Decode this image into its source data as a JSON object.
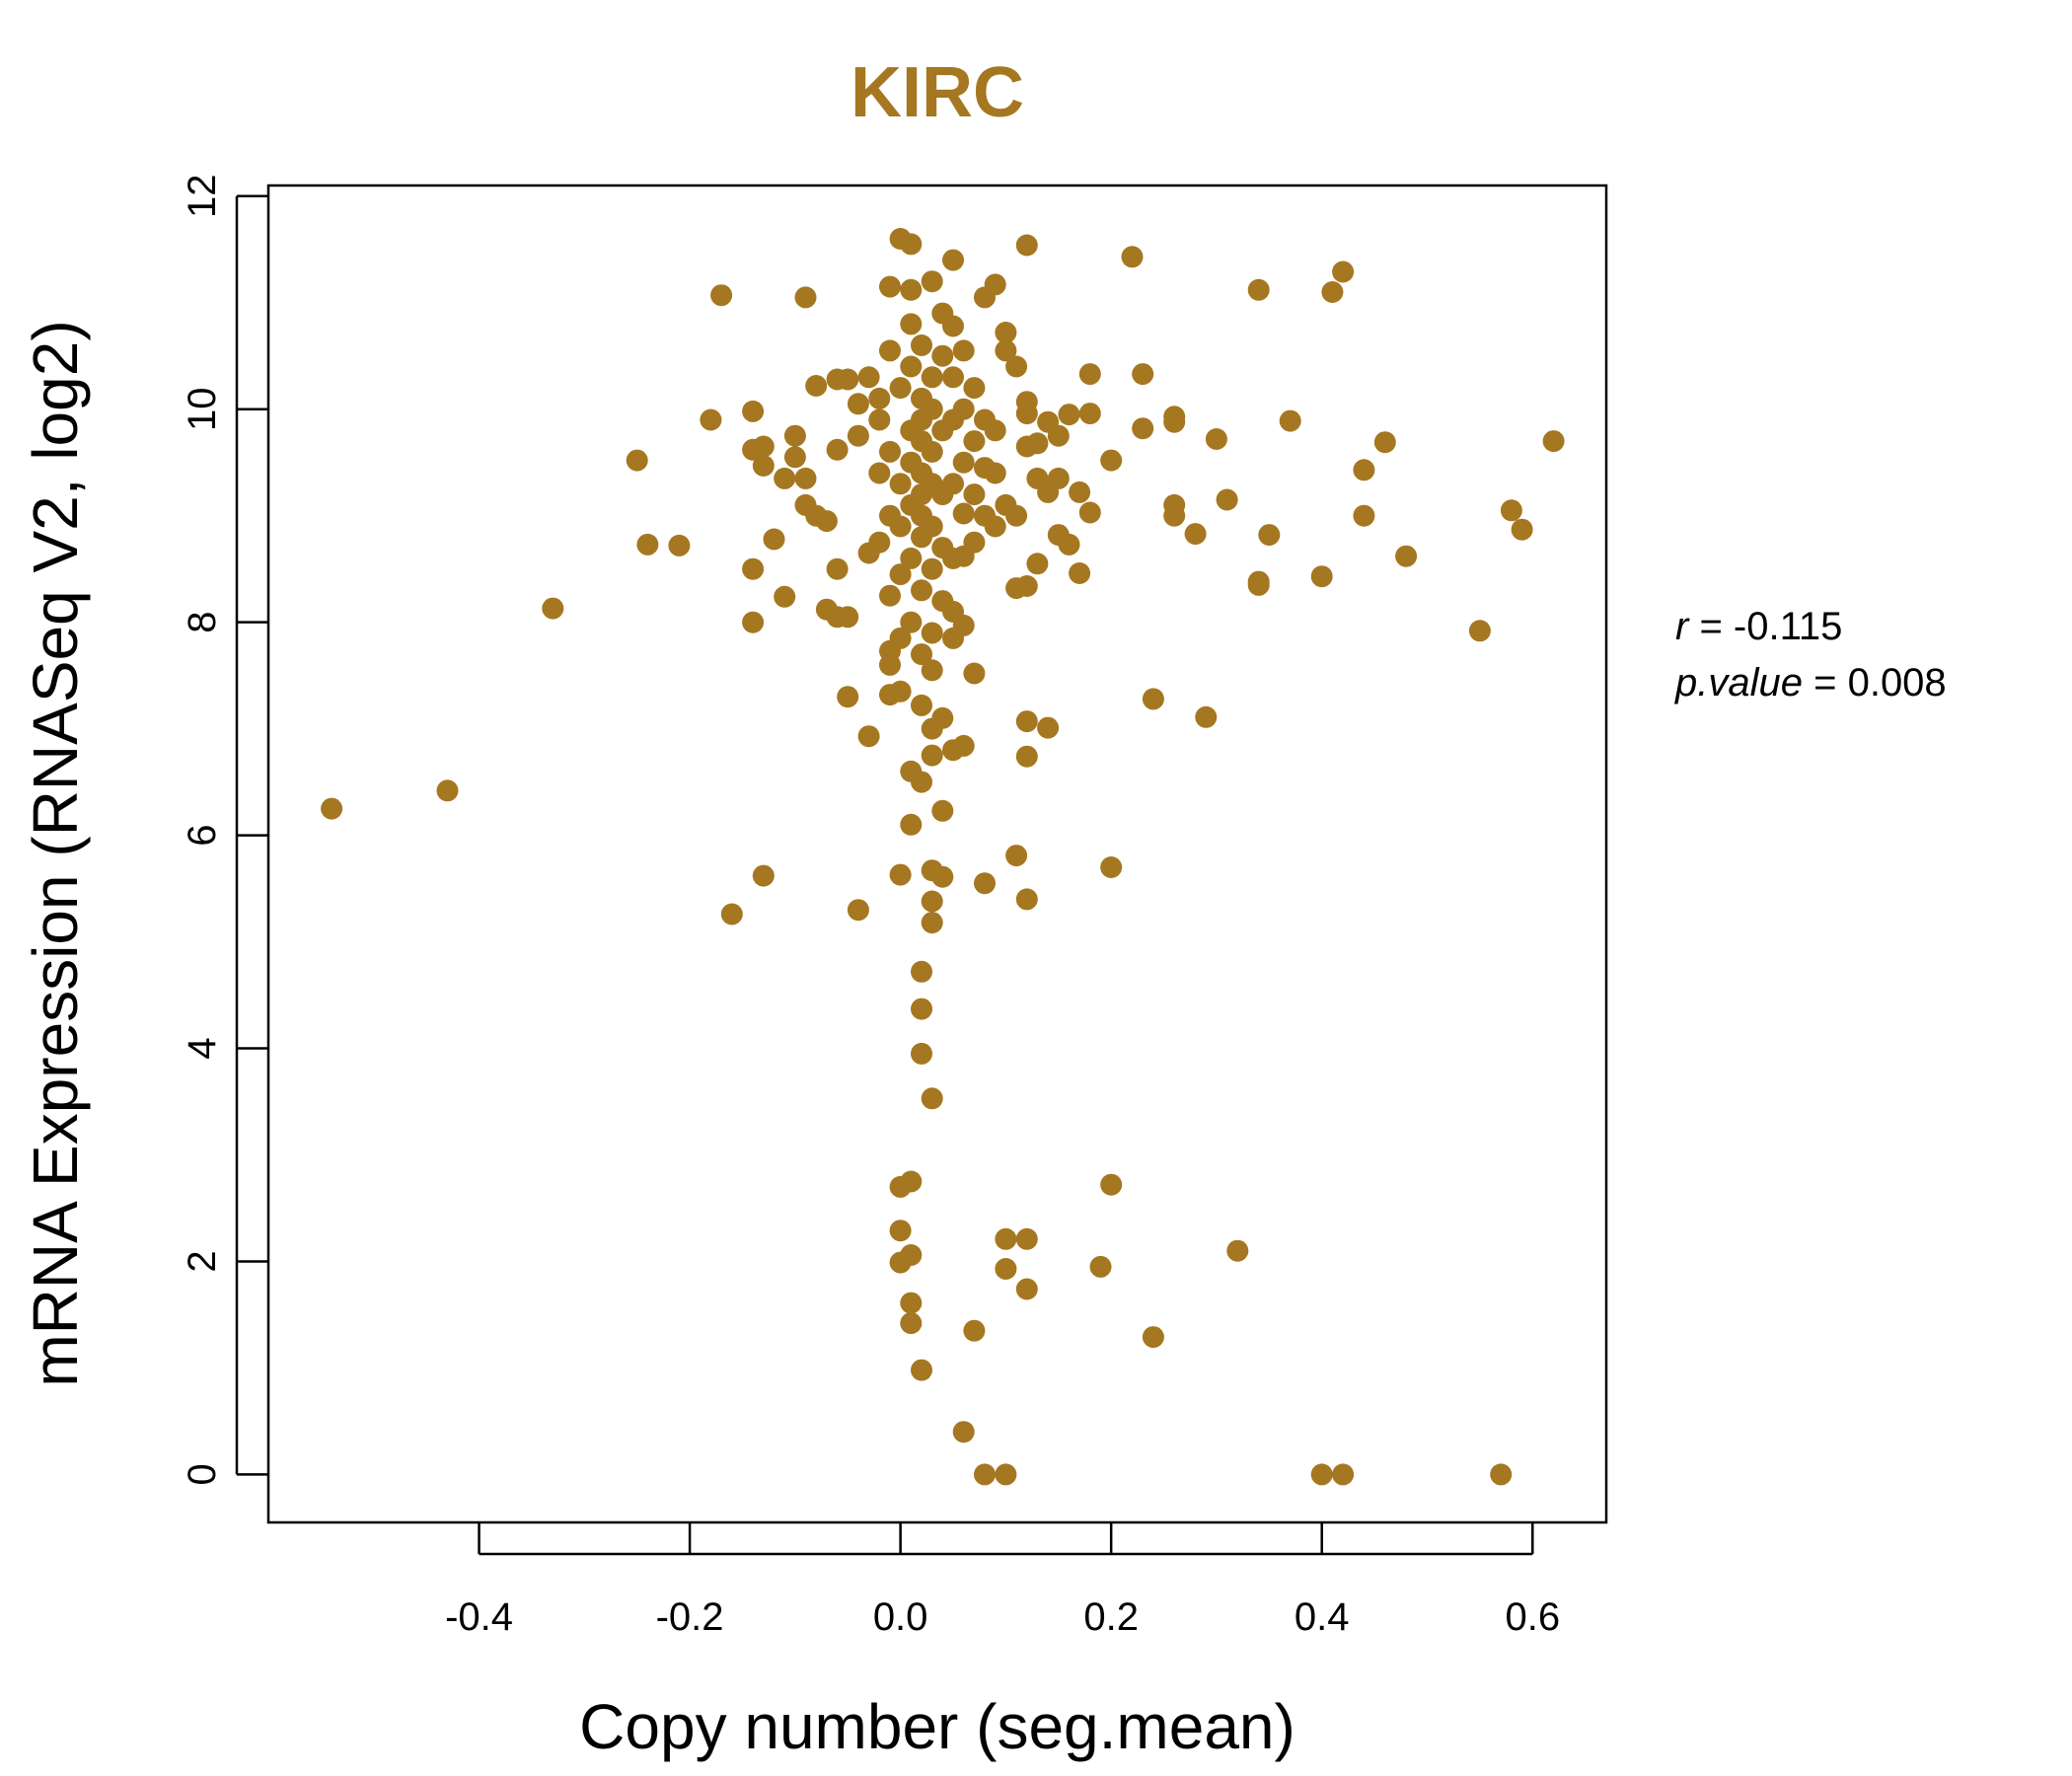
{
  "chart_data": {
    "type": "scatter",
    "title": "KIRC",
    "xlabel": "Copy number (seg.mean)",
    "ylabel": "mRNA Expression (RNASeq V2, log2)",
    "xlim": [
      -0.6,
      0.67
    ],
    "ylim": [
      -0.45,
      12.1
    ],
    "x_ticks": [
      -0.4,
      -0.2,
      0.0,
      0.2,
      0.4,
      0.6
    ],
    "x_tick_labels": [
      "-0.4",
      "-0.2",
      "0.0",
      "0.2",
      "0.4",
      "0.6"
    ],
    "y_ticks": [
      0,
      2,
      4,
      6,
      8,
      10,
      12
    ],
    "y_tick_labels": [
      "0",
      "2",
      "4",
      "6",
      "8",
      "10",
      "12"
    ],
    "grid": false,
    "color": "#A57721",
    "points": [
      [
        -0.54,
        6.25
      ],
      [
        -0.43,
        6.42
      ],
      [
        -0.33,
        8.13
      ],
      [
        -0.25,
        9.52
      ],
      [
        -0.24,
        8.73
      ],
      [
        -0.21,
        8.72
      ],
      [
        -0.18,
        9.9
      ],
      [
        -0.17,
        11.07
      ],
      [
        -0.16,
        5.26
      ],
      [
        -0.14,
        9.62
      ],
      [
        -0.14,
        9.98
      ],
      [
        -0.14,
        8.5
      ],
      [
        -0.14,
        8.0
      ],
      [
        -0.13,
        9.47
      ],
      [
        -0.13,
        9.65
      ],
      [
        -0.13,
        5.62
      ],
      [
        -0.12,
        8.78
      ],
      [
        -0.11,
        9.35
      ],
      [
        -0.11,
        8.24
      ],
      [
        -0.1,
        9.55
      ],
      [
        -0.1,
        9.75
      ],
      [
        -0.09,
        9.35
      ],
      [
        -0.09,
        11.05
      ],
      [
        -0.09,
        9.1
      ],
      [
        -0.08,
        9.0
      ],
      [
        -0.08,
        10.22
      ],
      [
        -0.07,
        8.95
      ],
      [
        -0.07,
        8.12
      ],
      [
        -0.06,
        8.05
      ],
      [
        -0.06,
        10.28
      ],
      [
        -0.06,
        9.62
      ],
      [
        -0.06,
        8.5
      ],
      [
        -0.05,
        8.05
      ],
      [
        -0.05,
        7.3
      ],
      [
        -0.05,
        10.28
      ],
      [
        -0.04,
        9.75
      ],
      [
        -0.04,
        10.05
      ],
      [
        -0.04,
        5.3
      ],
      [
        -0.03,
        8.65
      ],
      [
        -0.03,
        6.93
      ],
      [
        -0.03,
        10.3
      ],
      [
        -0.02,
        9.4
      ],
      [
        -0.02,
        8.75
      ],
      [
        -0.02,
        9.9
      ],
      [
        -0.02,
        10.1
      ],
      [
        -0.01,
        7.32
      ],
      [
        -0.01,
        7.6
      ],
      [
        -0.01,
        7.73
      ],
      [
        -0.01,
        8.25
      ],
      [
        -0.01,
        9.0
      ],
      [
        -0.01,
        9.6
      ],
      [
        -0.01,
        10.55
      ],
      [
        -0.01,
        11.15
      ],
      [
        0.0,
        8.45
      ],
      [
        0.0,
        8.9
      ],
      [
        0.0,
        9.3
      ],
      [
        0.0,
        10.2
      ],
      [
        0.0,
        7.85
      ],
      [
        0.0,
        5.63
      ],
      [
        0.0,
        11.6
      ],
      [
        0.0,
        1.99
      ],
      [
        0.0,
        2.29
      ],
      [
        0.0,
        2.7
      ],
      [
        0.0,
        7.35
      ],
      [
        0.01,
        6.1
      ],
      [
        0.01,
        6.6
      ],
      [
        0.01,
        2.75
      ],
      [
        0.01,
        1.42
      ],
      [
        0.01,
        1.61
      ],
      [
        0.01,
        2.06
      ],
      [
        0.01,
        8.0
      ],
      [
        0.01,
        8.6
      ],
      [
        0.01,
        9.1
      ],
      [
        0.01,
        9.5
      ],
      [
        0.01,
        9.8
      ],
      [
        0.01,
        10.4
      ],
      [
        0.01,
        10.8
      ],
      [
        0.01,
        11.12
      ],
      [
        0.01,
        11.55
      ],
      [
        0.02,
        8.3
      ],
      [
        0.02,
        8.8
      ],
      [
        0.02,
        9.2
      ],
      [
        0.02,
        9.7
      ],
      [
        0.02,
        10.1
      ],
      [
        0.02,
        10.6
      ],
      [
        0.02,
        7.7
      ],
      [
        0.02,
        7.22
      ],
      [
        0.02,
        6.5
      ],
      [
        0.02,
        4.72
      ],
      [
        0.02,
        4.37
      ],
      [
        0.02,
        3.95
      ],
      [
        0.02,
        0.98
      ],
      [
        0.02,
        9.0
      ],
      [
        0.02,
        9.4
      ],
      [
        0.02,
        9.9
      ],
      [
        0.03,
        7.55
      ],
      [
        0.03,
        7.0
      ],
      [
        0.03,
        6.75
      ],
      [
        0.03,
        5.67
      ],
      [
        0.03,
        5.38
      ],
      [
        0.03,
        5.18
      ],
      [
        0.03,
        3.53
      ],
      [
        0.03,
        8.5
      ],
      [
        0.03,
        9.3
      ],
      [
        0.03,
        10.3
      ],
      [
        0.03,
        11.2
      ],
      [
        0.03,
        7.9
      ],
      [
        0.03,
        8.9
      ],
      [
        0.03,
        9.6
      ],
      [
        0.03,
        10.0
      ],
      [
        0.04,
        6.23
      ],
      [
        0.04,
        5.61
      ],
      [
        0.04,
        7.1
      ],
      [
        0.04,
        8.2
      ],
      [
        0.04,
        8.7
      ],
      [
        0.04,
        9.2
      ],
      [
        0.04,
        9.8
      ],
      [
        0.04,
        10.5
      ],
      [
        0.04,
        10.9
      ],
      [
        0.05,
        11.4
      ],
      [
        0.05,
        7.85
      ],
      [
        0.05,
        8.1
      ],
      [
        0.05,
        8.6
      ],
      [
        0.05,
        9.3
      ],
      [
        0.05,
        9.9
      ],
      [
        0.05,
        10.3
      ],
      [
        0.05,
        6.8
      ],
      [
        0.05,
        10.78
      ],
      [
        0.06,
        6.84
      ],
      [
        0.06,
        7.97
      ],
      [
        0.06,
        8.62
      ],
      [
        0.06,
        9.02
      ],
      [
        0.06,
        9.5
      ],
      [
        0.06,
        10.0
      ],
      [
        0.06,
        10.55
      ],
      [
        0.06,
        0.4
      ],
      [
        0.07,
        1.35
      ],
      [
        0.07,
        7.52
      ],
      [
        0.07,
        8.75
      ],
      [
        0.07,
        9.2
      ],
      [
        0.07,
        9.7
      ],
      [
        0.07,
        10.2
      ],
      [
        0.08,
        5.55
      ],
      [
        0.08,
        9.0
      ],
      [
        0.08,
        9.45
      ],
      [
        0.08,
        9.9
      ],
      [
        0.08,
        11.05
      ],
      [
        0.08,
        0.0
      ],
      [
        0.09,
        8.9
      ],
      [
        0.09,
        9.4
      ],
      [
        0.09,
        9.8
      ],
      [
        0.09,
        11.17
      ],
      [
        0.1,
        2.21
      ],
      [
        0.1,
        1.93
      ],
      [
        0.1,
        10.72
      ],
      [
        0.1,
        10.55
      ],
      [
        0.1,
        0.0
      ],
      [
        0.1,
        9.1
      ],
      [
        0.11,
        9.0
      ],
      [
        0.11,
        8.32
      ],
      [
        0.11,
        5.81
      ],
      [
        0.11,
        10.4
      ],
      [
        0.12,
        7.07
      ],
      [
        0.12,
        6.74
      ],
      [
        0.12,
        2.21
      ],
      [
        0.12,
        5.4
      ],
      [
        0.12,
        8.34
      ],
      [
        0.12,
        9.65
      ],
      [
        0.12,
        9.96
      ],
      [
        0.12,
        10.07
      ],
      [
        0.12,
        11.54
      ],
      [
        0.12,
        1.74
      ],
      [
        0.13,
        8.55
      ],
      [
        0.13,
        9.35
      ],
      [
        0.13,
        9.68
      ],
      [
        0.14,
        7.01
      ],
      [
        0.14,
        9.22
      ],
      [
        0.14,
        9.88
      ],
      [
        0.15,
        8.82
      ],
      [
        0.15,
        9.35
      ],
      [
        0.15,
        9.75
      ],
      [
        0.16,
        9.95
      ],
      [
        0.16,
        8.73
      ],
      [
        0.17,
        8.46
      ],
      [
        0.17,
        9.22
      ],
      [
        0.18,
        9.03
      ],
      [
        0.18,
        10.33
      ],
      [
        0.18,
        9.96
      ],
      [
        0.19,
        1.95
      ],
      [
        0.2,
        2.72
      ],
      [
        0.2,
        5.7
      ],
      [
        0.2,
        9.52
      ],
      [
        0.22,
        11.43
      ],
      [
        0.23,
        10.33
      ],
      [
        0.23,
        9.82
      ],
      [
        0.24,
        7.28
      ],
      [
        0.24,
        1.29
      ],
      [
        0.26,
        9.88
      ],
      [
        0.26,
        9.93
      ],
      [
        0.26,
        9.1
      ],
      [
        0.26,
        9.0
      ],
      [
        0.28,
        8.83
      ],
      [
        0.29,
        7.11
      ],
      [
        0.3,
        9.72
      ],
      [
        0.31,
        9.15
      ],
      [
        0.32,
        2.1
      ],
      [
        0.34,
        8.38
      ],
      [
        0.34,
        8.35
      ],
      [
        0.34,
        11.12
      ],
      [
        0.35,
        8.82
      ],
      [
        0.37,
        9.89
      ],
      [
        0.4,
        8.43
      ],
      [
        0.4,
        0.0
      ],
      [
        0.41,
        11.1
      ],
      [
        0.42,
        11.29
      ],
      [
        0.42,
        0.0
      ],
      [
        0.44,
        9.43
      ],
      [
        0.44,
        9.0
      ],
      [
        0.46,
        9.69
      ],
      [
        0.48,
        8.62
      ],
      [
        0.55,
        7.92
      ],
      [
        0.57,
        0.0
      ],
      [
        0.58,
        9.05
      ],
      [
        0.59,
        8.87
      ],
      [
        0.62,
        9.7
      ]
    ]
  },
  "stats": {
    "r_label": "r",
    "r_value": "-0.115",
    "p_label": "p.value",
    "p_value": "0.008"
  }
}
